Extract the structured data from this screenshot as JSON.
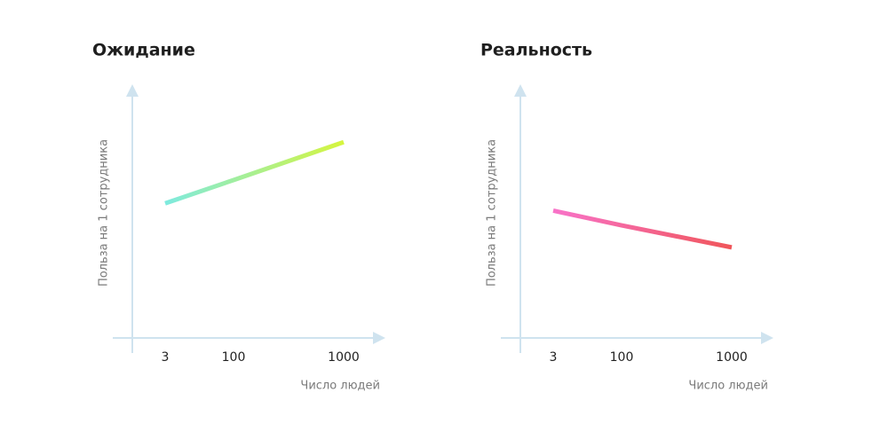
{
  "chart_data": [
    {
      "type": "line",
      "title": "Ожидание",
      "ylabel": "Польза на 1 сотрудника",
      "xlabel": "Число людей",
      "categories": [
        "3",
        "100",
        "1000"
      ],
      "ylim": [
        0,
        100
      ],
      "series": [
        {
          "values": [
            55,
            64.5,
            80
          ],
          "colors": [
            "#7eeadf",
            "#d6f53e"
          ]
        }
      ]
    },
    {
      "type": "line",
      "title": "Реальность",
      "ylabel": "Польза на 1 сотрудника",
      "xlabel": "Число людей",
      "categories": [
        "3",
        "100",
        "1000"
      ],
      "ylim": [
        0,
        100
      ],
      "series": [
        {
          "values": [
            52,
            46,
            37
          ],
          "colors": [
            "#f873c9",
            "#f0565a"
          ]
        }
      ]
    }
  ]
}
